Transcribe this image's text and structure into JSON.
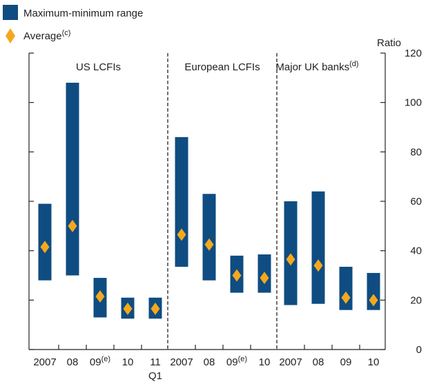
{
  "chart_data": {
    "type": "bar",
    "subtype": "range-with-average",
    "ylabel": "Ratio",
    "ylim": [
      0,
      120
    ],
    "yticks": [
      0,
      20,
      40,
      60,
      80,
      100,
      120
    ],
    "legend": {
      "placement": "top-left",
      "range_label": "Maximum-minimum range",
      "average_label": "Average",
      "average_sup": "(c)"
    },
    "colors": {
      "range": "#0f4c81",
      "average": "#f5a81c",
      "axis": "#222222"
    },
    "panels": [
      {
        "label": "US LCFIs",
        "sup": "",
        "bars": [
          {
            "label": "2007",
            "sup": "",
            "sublabel": "",
            "min": 28,
            "max": 59,
            "avg": 41.5
          },
          {
            "label": "08",
            "sup": "",
            "sublabel": "",
            "min": 30,
            "max": 108,
            "avg": 50
          },
          {
            "label": "09",
            "sup": "(e)",
            "sublabel": "",
            "min": 13,
            "max": 29,
            "avg": 21.5
          },
          {
            "label": "10",
            "sup": "",
            "sublabel": "",
            "min": 12.5,
            "max": 21,
            "avg": 16.5
          },
          {
            "label": "11",
            "sup": "",
            "sublabel": "Q1",
            "min": 12.5,
            "max": 21,
            "avg": 16.5
          }
        ]
      },
      {
        "label": "European LCFIs",
        "sup": "",
        "bars": [
          {
            "label": "2007",
            "sup": "",
            "sublabel": "",
            "min": 33.5,
            "max": 86,
            "avg": 46.5
          },
          {
            "label": "08",
            "sup": "",
            "sublabel": "",
            "min": 28,
            "max": 63,
            "avg": 42.5
          },
          {
            "label": "09",
            "sup": "(e)",
            "sublabel": "",
            "min": 23,
            "max": 38,
            "avg": 30
          },
          {
            "label": "10",
            "sup": "",
            "sublabel": "",
            "min": 23,
            "max": 38.5,
            "avg": 29
          }
        ]
      },
      {
        "label": "Major UK banks",
        "sup": "(d)",
        "bars": [
          {
            "label": "2007",
            "sup": "",
            "sublabel": "",
            "min": 18,
            "max": 60,
            "avg": 36.5
          },
          {
            "label": "08",
            "sup": "",
            "sublabel": "",
            "min": 18.5,
            "max": 64,
            "avg": 34
          },
          {
            "label": "09",
            "sup": "",
            "sublabel": "",
            "min": 16,
            "max": 33.5,
            "avg": 21
          },
          {
            "label": "10",
            "sup": "",
            "sublabel": "",
            "min": 16,
            "max": 31,
            "avg": 20
          }
        ]
      }
    ]
  }
}
